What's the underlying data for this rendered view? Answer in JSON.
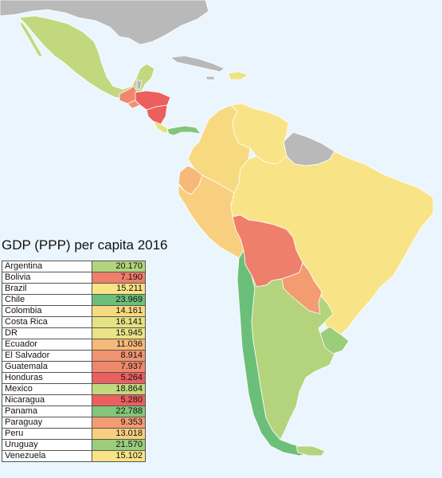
{
  "title": "GDP (PPP) per capita 2016",
  "colors": {
    "ocean": "#eaf5fd",
    "no_data": "#b9b9b9",
    "tier_red": "#ec5f5f",
    "tier_salmon": "#f08a6c",
    "tier_orange": "#f7b979",
    "tier_yellow": "#f8e486",
    "tier_lightgreen": "#b8d67d",
    "tier_green": "#6cbf78"
  },
  "countries": [
    {
      "name": "Argentina",
      "value": "20.170",
      "color": "#b3d47c"
    },
    {
      "name": "Bolivia",
      "value": "7.190",
      "color": "#ee7f6a"
    },
    {
      "name": "Brazil",
      "value": "15.211",
      "color": "#f8e486"
    },
    {
      "name": "Chile",
      "value": "23.969",
      "color": "#6cbf78"
    },
    {
      "name": "Colombia",
      "value": "14.161",
      "color": "#f7da80"
    },
    {
      "name": "Costa Rica",
      "value": "16.141",
      "color": "#e6e284"
    },
    {
      "name": "DR",
      "value": "15.945",
      "color": "#ebe385"
    },
    {
      "name": "Ecuador",
      "value": "11.036",
      "color": "#f6b977"
    },
    {
      "name": "El Salvador",
      "value": "8.914",
      "color": "#f1936f"
    },
    {
      "name": "Guatemala",
      "value": "7.937",
      "color": "#ef876c"
    },
    {
      "name": "Honduras",
      "value": "5.264",
      "color": "#ec5f5f"
    },
    {
      "name": "Mexico",
      "value": "18.864",
      "color": "#c2d87f"
    },
    {
      "name": "Nicaragua",
      "value": "5.280",
      "color": "#ec5f5f"
    },
    {
      "name": "Panama",
      "value": "22.788",
      "color": "#83c57a"
    },
    {
      "name": "Paraguay",
      "value": "9.353",
      "color": "#f39b71"
    },
    {
      "name": "Peru",
      "value": "13.018",
      "color": "#f8cf7e"
    },
    {
      "name": "Uruguay",
      "value": "21.570",
      "color": "#9bcd7b"
    },
    {
      "name": "Venezuela",
      "value": "15.102",
      "color": "#f8e486"
    }
  ]
}
